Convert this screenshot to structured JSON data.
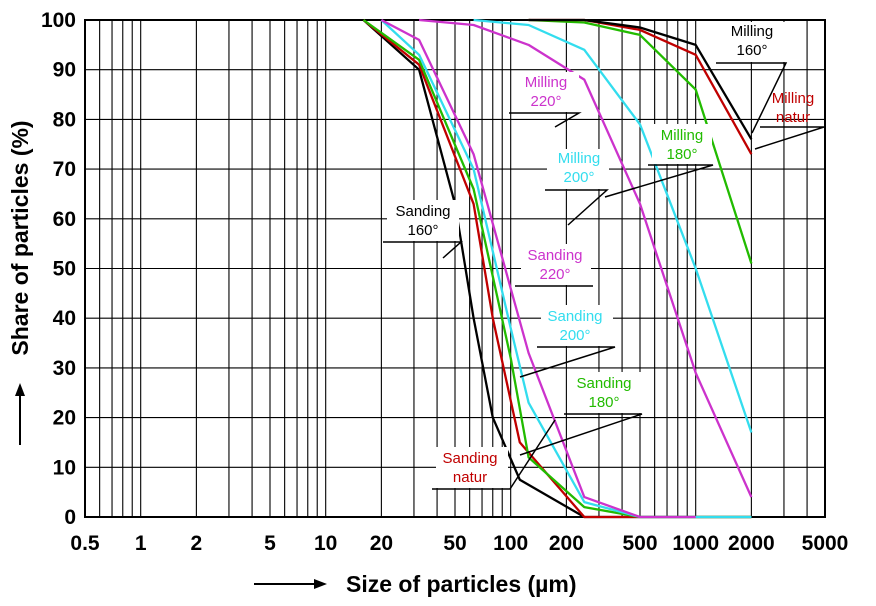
{
  "chart_data": {
    "type": "line",
    "xlabel": "Size of particles (µm)",
    "ylabel": "Share of particles (%)",
    "x_scale": "log",
    "xlim": [
      0.5,
      5000
    ],
    "ylim": [
      0,
      100
    ],
    "grid": true,
    "x_ticks": [
      {
        "value": 0.5,
        "label": "0.5"
      },
      {
        "value": 1,
        "label": "1"
      },
      {
        "value": 2,
        "label": "2"
      },
      {
        "value": 5,
        "label": "5"
      },
      {
        "value": 10,
        "label": "10"
      },
      {
        "value": 20,
        "label": "20"
      },
      {
        "value": 50,
        "label": "50"
      },
      {
        "value": 100,
        "label": "100"
      },
      {
        "value": 200,
        "label": "200"
      },
      {
        "value": 500,
        "label": "500"
      },
      {
        "value": 1000,
        "label": "1000"
      },
      {
        "value": 2000,
        "label": "2000"
      },
      {
        "value": 5000,
        "label": "5000"
      }
    ],
    "y_ticks": [
      {
        "value": 0,
        "label": "0"
      },
      {
        "value": 10,
        "label": "10"
      },
      {
        "value": 20,
        "label": "20"
      },
      {
        "value": 30,
        "label": "30"
      },
      {
        "value": 40,
        "label": "40"
      },
      {
        "value": 50,
        "label": "50"
      },
      {
        "value": 60,
        "label": "60"
      },
      {
        "value": 70,
        "label": "70"
      },
      {
        "value": 80,
        "label": "80"
      },
      {
        "value": 90,
        "label": "90"
      },
      {
        "value": 100,
        "label": "100"
      }
    ],
    "series": [
      {
        "id": "sanding-160",
        "name": "Sanding 160°",
        "color": "#000000",
        "points": [
          [
            16,
            100
          ],
          [
            32,
            90
          ],
          [
            50,
            63
          ],
          [
            63,
            40
          ],
          [
            80,
            20
          ],
          [
            112,
            7.5
          ],
          [
            250,
            0
          ],
          [
            2000,
            0
          ]
        ]
      },
      {
        "id": "sanding-natur",
        "name": "Sanding natur",
        "color": "#c00000",
        "points": [
          [
            16,
            100
          ],
          [
            32,
            91
          ],
          [
            63,
            63
          ],
          [
            80,
            40
          ],
          [
            112,
            15
          ],
          [
            250,
            0
          ],
          [
            2000,
            0
          ]
        ]
      },
      {
        "id": "sanding-180",
        "name": "Sanding 180°",
        "color": "#22bb00",
        "points": [
          [
            16,
            100
          ],
          [
            32,
            92
          ],
          [
            63,
            66
          ],
          [
            100,
            32
          ],
          [
            125,
            12
          ],
          [
            250,
            2
          ],
          [
            500,
            0
          ],
          [
            2000,
            0
          ]
        ]
      },
      {
        "id": "sanding-200",
        "name": "Sanding 200°",
        "color": "#33ddee",
        "points": [
          [
            20,
            100
          ],
          [
            32,
            93
          ],
          [
            63,
            70
          ],
          [
            100,
            38
          ],
          [
            125,
            23
          ],
          [
            250,
            3
          ],
          [
            500,
            0
          ],
          [
            2000,
            0
          ]
        ]
      },
      {
        "id": "sanding-220",
        "name": "Sanding 220°",
        "color": "#cc33cc",
        "points": [
          [
            20,
            100
          ],
          [
            32,
            96
          ],
          [
            63,
            73
          ],
          [
            100,
            46
          ],
          [
            125,
            33
          ],
          [
            250,
            4
          ],
          [
            500,
            0
          ],
          [
            1000,
            0
          ]
        ]
      },
      {
        "id": "milling-220",
        "name": "Milling 220°",
        "color": "#cc33cc",
        "points": [
          [
            32,
            100
          ],
          [
            63,
            99
          ],
          [
            125,
            95
          ],
          [
            250,
            88
          ],
          [
            500,
            63
          ],
          [
            1000,
            29
          ],
          [
            2000,
            4
          ]
        ]
      },
      {
        "id": "milling-200",
        "name": "Milling 200°",
        "color": "#33ddee",
        "points": [
          [
            63,
            100
          ],
          [
            125,
            99
          ],
          [
            250,
            94
          ],
          [
            500,
            79
          ],
          [
            1000,
            50
          ],
          [
            2000,
            17
          ]
        ]
      },
      {
        "id": "milling-180",
        "name": "Milling 180°",
        "color": "#22bb00",
        "points": [
          [
            125,
            100
          ],
          [
            250,
            99.5
          ],
          [
            500,
            97
          ],
          [
            1000,
            86
          ],
          [
            2000,
            51
          ]
        ]
      },
      {
        "id": "milling-natur",
        "name": "Milling natur",
        "color": "#c00000",
        "points": [
          [
            125,
            100
          ],
          [
            250,
            100
          ],
          [
            500,
            98
          ],
          [
            1000,
            93
          ],
          [
            2000,
            73
          ]
        ]
      },
      {
        "id": "milling-160",
        "name": "Milling 160°",
        "color": "#000000",
        "points": [
          [
            125,
            100
          ],
          [
            250,
            100
          ],
          [
            500,
            98.5
          ],
          [
            1000,
            95
          ],
          [
            2000,
            76
          ]
        ]
      }
    ],
    "annotations": [
      {
        "name": "milling-160-label",
        "color": "#000000",
        "lines": [
          "Milling",
          "160°"
        ]
      },
      {
        "name": "milling-natur-label",
        "color": "#c00000",
        "lines": [
          "Milling",
          "natur"
        ]
      },
      {
        "name": "milling-220-label",
        "color": "#cc33cc",
        "lines": [
          "Milling",
          "220°"
        ]
      },
      {
        "name": "milling-180-label",
        "color": "#22bb00",
        "lines": [
          "Milling",
          "180°"
        ]
      },
      {
        "name": "milling-200-label",
        "color": "#33ddee",
        "lines": [
          "Milling",
          "200°"
        ]
      },
      {
        "name": "sanding-160-label",
        "color": "#000000",
        "lines": [
          "Sanding",
          "160°"
        ]
      },
      {
        "name": "sanding-220-label",
        "color": "#cc33cc",
        "lines": [
          "Sanding",
          "220°"
        ]
      },
      {
        "name": "sanding-200-label",
        "color": "#33ddee",
        "lines": [
          "Sanding",
          "200°"
        ]
      },
      {
        "name": "sanding-180-label",
        "color": "#22bb00",
        "lines": [
          "Sanding",
          "180°"
        ]
      },
      {
        "name": "sanding-natur-label",
        "color": "#c00000",
        "lines": [
          "Sanding",
          "natur"
        ]
      }
    ]
  }
}
